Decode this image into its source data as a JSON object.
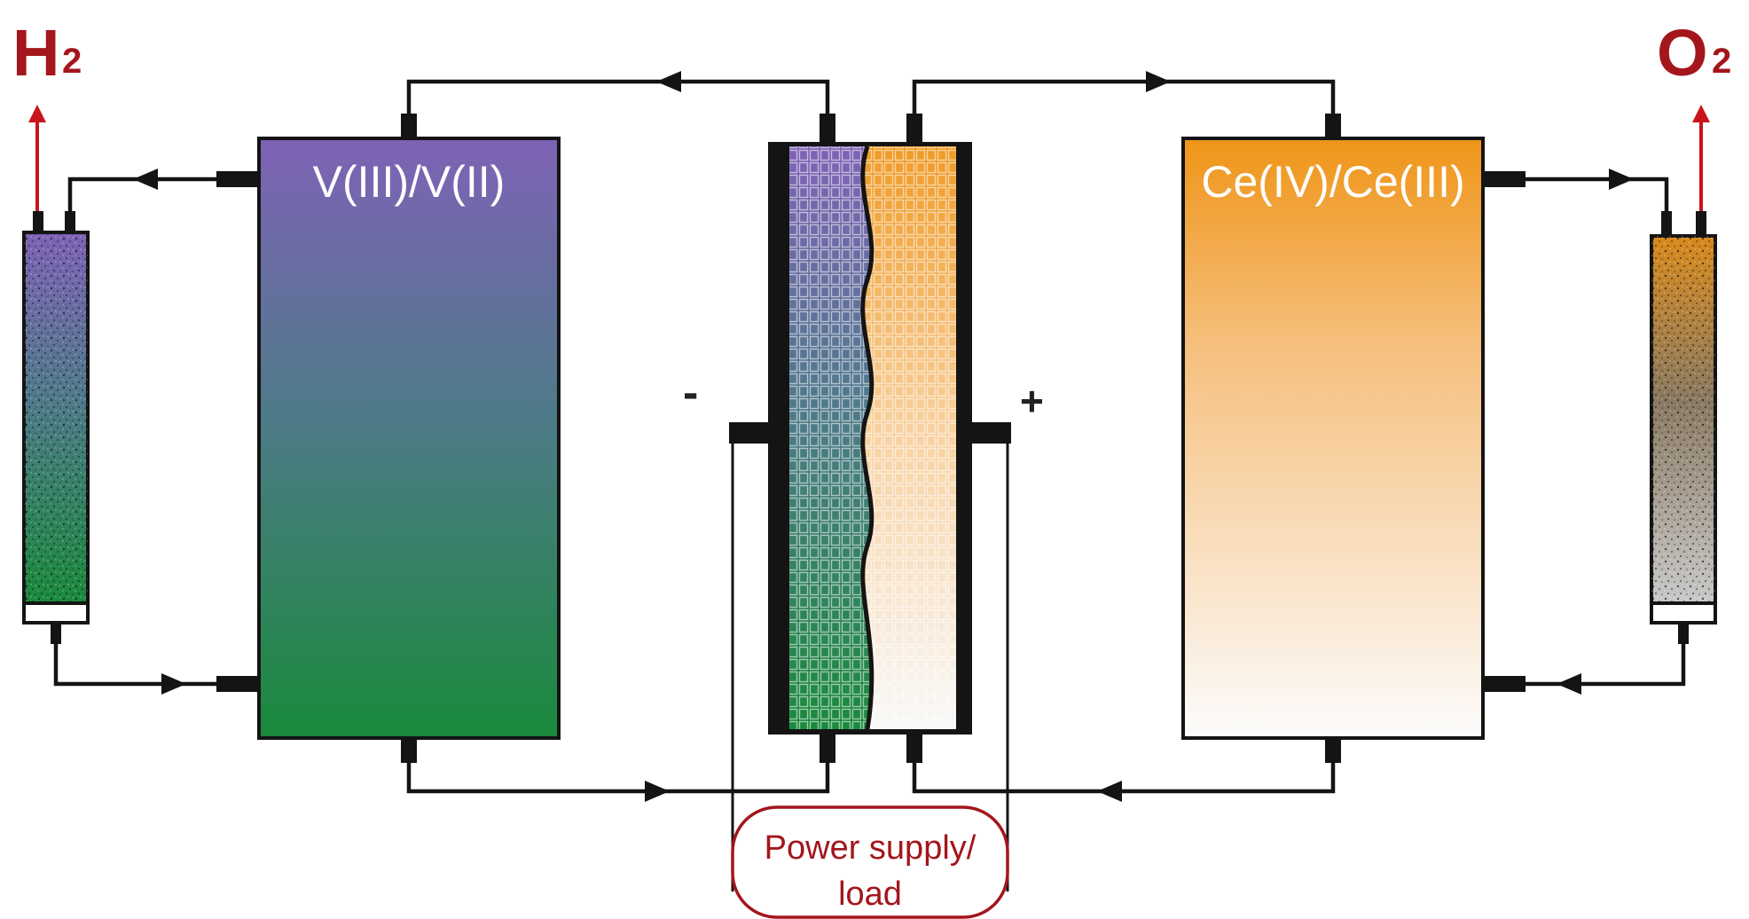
{
  "labels": {
    "hydrogen": "H",
    "hydrogen_sub": "2",
    "oxygen": "O",
    "oxygen_sub": "2",
    "negative_tank": "V(III)/V(II)",
    "positive_tank": "Ce(IV)/Ce(III)",
    "minus_terminal": "-",
    "plus_terminal": "+",
    "power_supply_line1": "Power supply/",
    "power_supply_line2": "load"
  },
  "colors": {
    "vanadium_top": "#7f62b6",
    "vanadium_mid": "#4f7a8a",
    "vanadium_bottom": "#1a8a3c",
    "cerium_top": "#ef9518",
    "cerium_bottom": "#fcfcfc",
    "gas_arrow": "#c7141d",
    "gas_text": "#a3161c",
    "wire": "#141414"
  }
}
